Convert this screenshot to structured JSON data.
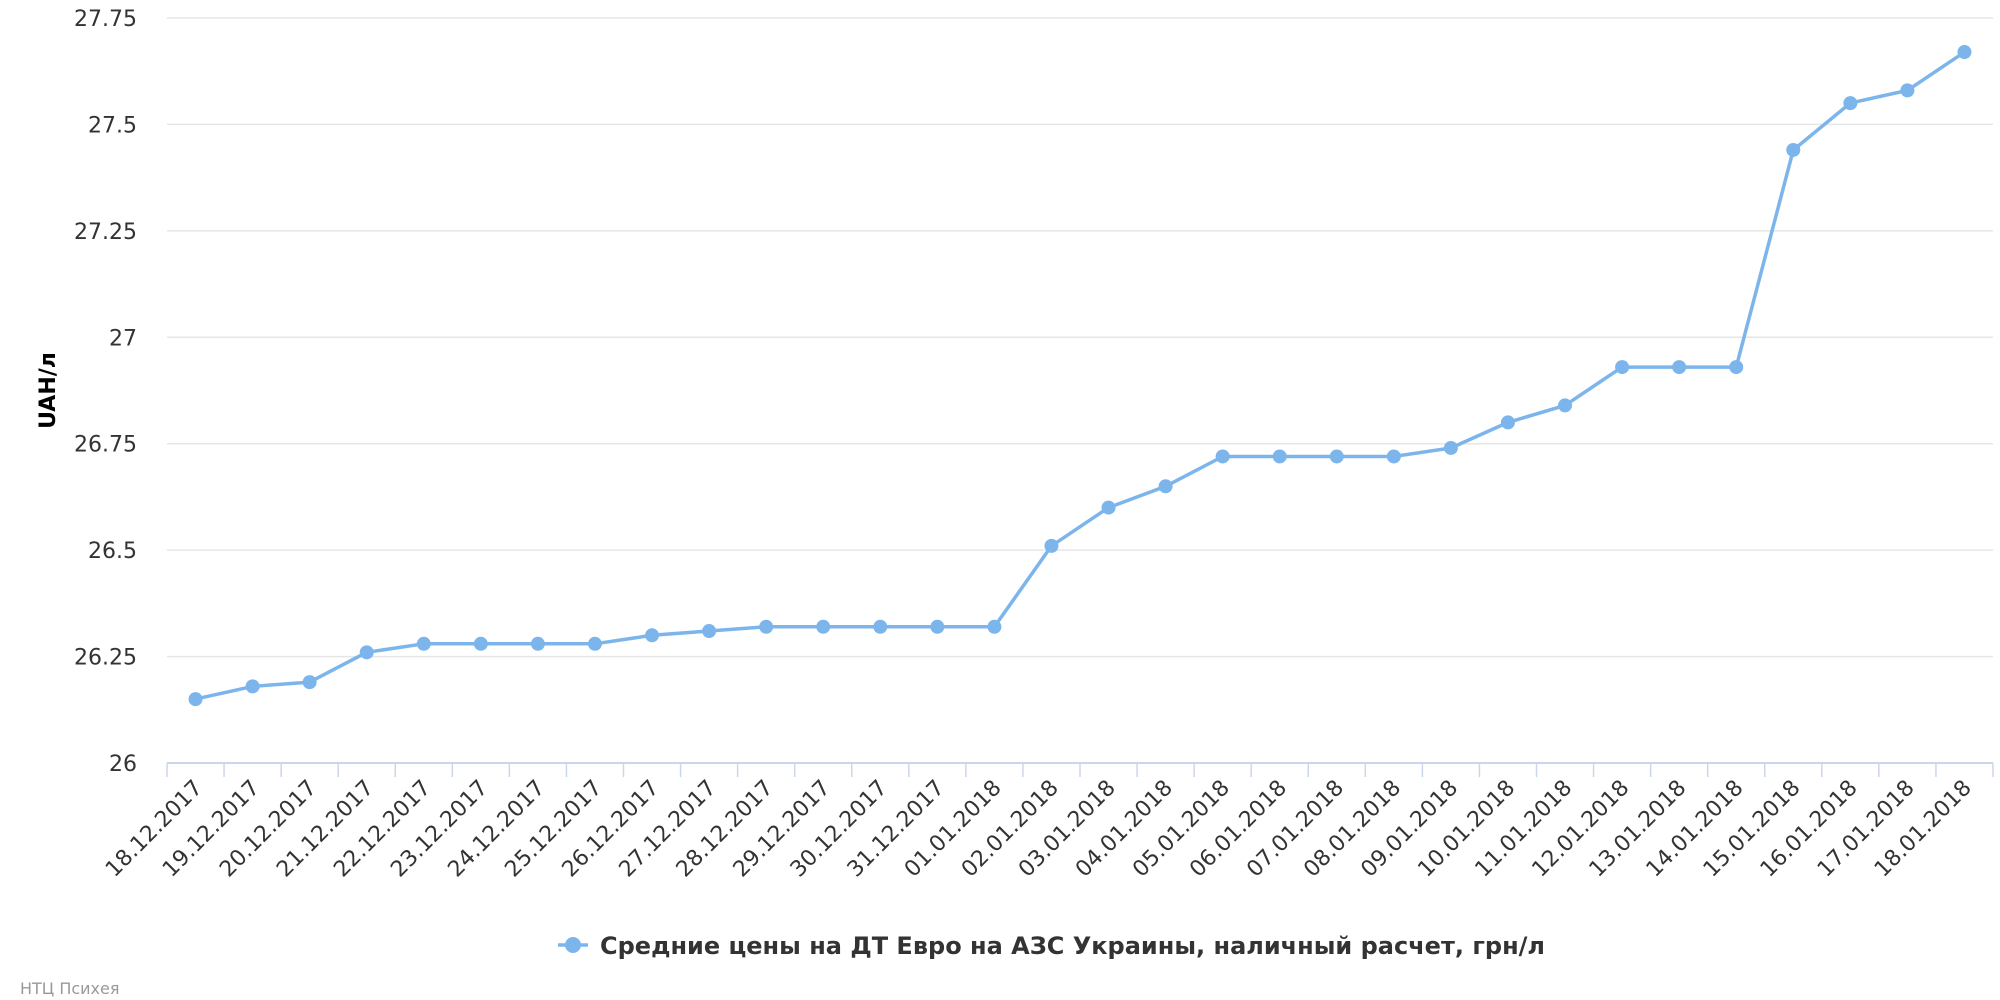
{
  "chart_data": {
    "type": "line",
    "title": "",
    "ylabel": "UAH/л",
    "xlabel": "",
    "ylim": [
      26,
      27.75
    ],
    "yticks": [
      "26",
      "26.25",
      "26.5",
      "26.75",
      "27",
      "27.25",
      "27.5",
      "27.75"
    ],
    "grid": true,
    "legend_position": "bottom-center",
    "categories": [
      "18.12.2017",
      "19.12.2017",
      "20.12.2017",
      "21.12.2017",
      "22.12.2017",
      "23.12.2017",
      "24.12.2017",
      "25.12.2017",
      "26.12.2017",
      "27.12.2017",
      "28.12.2017",
      "29.12.2017",
      "30.12.2017",
      "31.12.2017",
      "01.01.2018",
      "02.01.2018",
      "03.01.2018",
      "04.01.2018",
      "05.01.2018",
      "06.01.2018",
      "07.01.2018",
      "08.01.2018",
      "09.01.2018",
      "10.01.2018",
      "11.01.2018",
      "12.01.2018",
      "13.01.2018",
      "14.01.2018",
      "15.01.2018",
      "16.01.2018",
      "17.01.2018",
      "18.01.2018"
    ],
    "series": [
      {
        "name": "Средние цены на ДТ Евро на АЗС Украины, наличный расчет, грн/л",
        "color": "#7cb5ec",
        "values": [
          26.15,
          26.18,
          26.19,
          26.26,
          26.28,
          26.28,
          26.28,
          26.28,
          26.3,
          26.31,
          26.32,
          26.32,
          26.32,
          26.32,
          26.32,
          26.51,
          26.6,
          26.65,
          26.72,
          26.72,
          26.72,
          26.72,
          26.74,
          26.8,
          26.84,
          26.93,
          26.93,
          26.93,
          27.44,
          27.55,
          27.58,
          27.67
        ]
      }
    ]
  },
  "credit": "НТЦ Психея"
}
